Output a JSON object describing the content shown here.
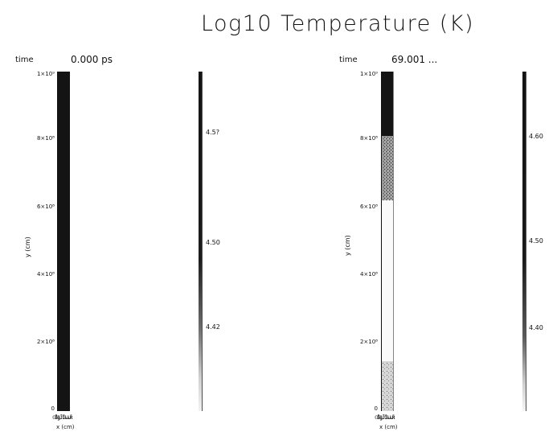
{
  "title": "Log10 Temperature (K)",
  "panels": [
    {
      "time_label": "time",
      "time_value": "0.000 ps",
      "y_ticks": [
        "1×10⁹",
        "8×10⁸",
        "6×10⁸",
        "4×10⁸",
        "2×10⁸",
        "0"
      ],
      "ylabel": "y (cm)",
      "xlabel": "x (cm)",
      "x_ticks": "ℂ̄B̄ĝĴĪȽȽŘ",
      "colorbar_ticks": [
        "4.5?",
        "4.50",
        "4.42"
      ]
    },
    {
      "time_label": "time",
      "time_value": "69.001 ...",
      "y_ticks": [
        "1×10⁹",
        "8×10⁸",
        "6×10⁸",
        "4×10⁸",
        "2×10⁸",
        "0"
      ],
      "ylabel": "y (cm)",
      "xlabel": "x (cm)",
      "x_ticks": "ℂ̄B̄ĝĴĪȽȽŘ",
      "colorbar_ticks": [
        "4.60",
        "4.50",
        "4.40"
      ]
    }
  ],
  "colors": {
    "dark": "#141414",
    "text": "#111111"
  },
  "chart_data": [
    {
      "type": "heatmap",
      "panel": "left",
      "ylim": [
        0,
        1000000000
      ],
      "y": [
        1000000000,
        800000000,
        600000000,
        400000000,
        200000000,
        0
      ],
      "values_log10_T": [
        4.6,
        4.6,
        4.6,
        4.6,
        4.6,
        4.6
      ],
      "colorbar_range": [
        4.4,
        4.62
      ],
      "grid": false
    },
    {
      "type": "heatmap",
      "panel": "right",
      "ylim": [
        0,
        1000000000
      ],
      "y": [
        1000000000,
        800000000,
        600000000,
        400000000,
        200000000,
        0
      ],
      "values_log10_T": [
        4.62,
        4.58,
        4.3,
        4.3,
        4.3,
        4.5
      ],
      "colorbar_range": [
        4.3,
        4.65
      ],
      "grid": false
    }
  ]
}
